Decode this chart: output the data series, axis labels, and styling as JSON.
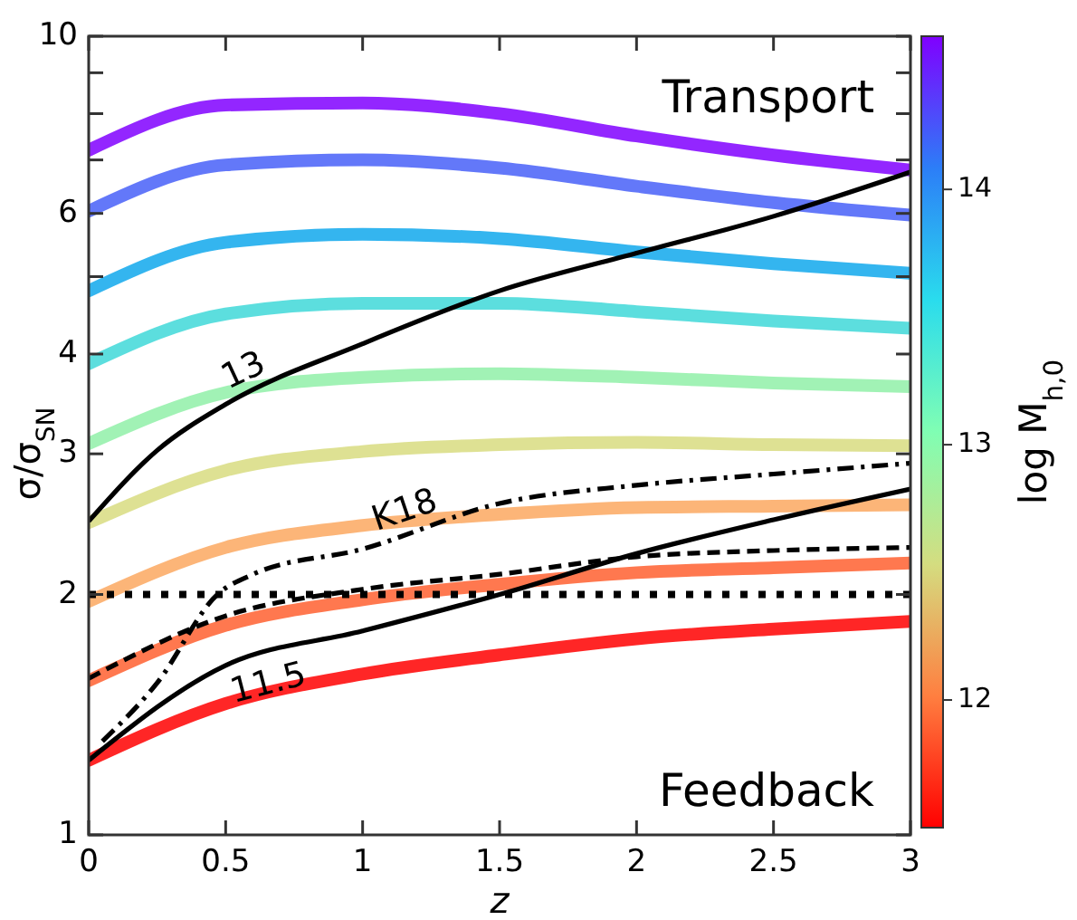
{
  "chart_data": {
    "type": "line",
    "xlabel": "z",
    "ylabel": "σ/σ$_{SN}$",
    "clabel": "log M$_{h,0}$",
    "x": [
      0,
      0.5,
      1,
      1.5,
      2,
      2.5,
      3
    ],
    "xlim": [
      0,
      3
    ],
    "xticks": [
      0,
      0.5,
      1,
      1.5,
      2,
      2.5,
      3
    ],
    "ylim": [
      1,
      10
    ],
    "log": "y",
    "yticks": [
      1,
      2,
      3,
      4,
      {
        "value": 5,
        "label": null
      },
      6,
      {
        "value": 7,
        "label": null
      },
      {
        "value": 8,
        "label": null
      },
      {
        "value": 9,
        "label": null
      },
      10
    ],
    "clim": [
      11.5,
      14.6
    ],
    "cticks": [
      12,
      13,
      14
    ],
    "series": [
      {
        "color": "#ff0000",
        "values": [
          1.24,
          1.46,
          1.59,
          1.68,
          1.76,
          1.81,
          1.85
        ]
      },
      {
        "color": "#ff6030",
        "values": [
          1.56,
          1.83,
          1.97,
          2.06,
          2.13,
          2.16,
          2.19
        ]
      },
      {
        "color": "#fca860",
        "values": [
          1.96,
          2.29,
          2.44,
          2.52,
          2.57,
          2.58,
          2.59
        ]
      },
      {
        "color": "#d8dc80",
        "values": [
          2.46,
          2.86,
          3.02,
          3.08,
          3.1,
          3.08,
          3.07
        ]
      },
      {
        "color": "#90f0a8",
        "values": [
          3.09,
          3.58,
          3.74,
          3.78,
          3.74,
          3.68,
          3.64
        ]
      },
      {
        "color": "#40d8d8",
        "values": [
          3.89,
          4.49,
          4.63,
          4.63,
          4.52,
          4.4,
          4.31
        ]
      },
      {
        "color": "#10a8ec",
        "values": [
          4.8,
          5.52,
          5.65,
          5.58,
          5.37,
          5.19,
          5.05
        ]
      },
      {
        "color": "#4860f8",
        "values": [
          6.04,
          6.9,
          7.0,
          6.84,
          6.49,
          6.19,
          5.97
        ]
      },
      {
        "color": "#8000ff",
        "values": [
          7.2,
          8.2,
          8.25,
          8.0,
          7.5,
          7.1,
          6.8
        ]
      },
      {
        "name": "13",
        "color": "#000000",
        "line_style": "solid",
        "x": [
          0,
          0.25,
          0.5,
          1,
          1.5,
          2,
          2.5,
          3
        ],
        "values": [
          2.47,
          3.03,
          3.46,
          4.12,
          4.8,
          5.35,
          5.95,
          6.76
        ]
      },
      {
        "name": "11.5",
        "color": "#000000",
        "line_style": "solid",
        "x": [
          0,
          0.5,
          1,
          1.5,
          2,
          2.5,
          3
        ],
        "values": [
          1.24,
          1.63,
          1.8,
          2.0,
          2.25,
          2.48,
          2.71
        ]
      },
      {
        "name": "K18",
        "color": "#000000",
        "line_style": "dashdot",
        "x": [
          0.05,
          0.25,
          0.47,
          0.6,
          1,
          1.5,
          2,
          2.5,
          3
        ],
        "values": [
          1.31,
          1.55,
          2.0,
          2.12,
          2.28,
          2.6,
          2.74,
          2.83,
          2.92
        ]
      },
      {
        "color": "#000000",
        "line_style": "dashed",
        "values": [
          1.57,
          1.88,
          2.03,
          2.12,
          2.23,
          2.27,
          2.29
        ]
      }
    ],
    "ref_lines": [
      {
        "axis": "y",
        "value": 2,
        "color": "#000000",
        "line_style": "dotted"
      }
    ],
    "annotations": [
      "Transport",
      "Feedback"
    ],
    "grid": false
  }
}
